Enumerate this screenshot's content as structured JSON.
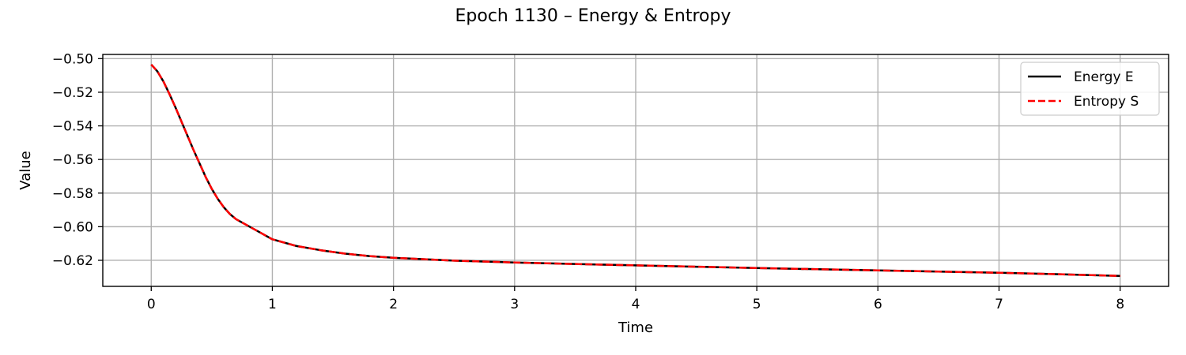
{
  "chart_data": {
    "type": "line",
    "title": "Epoch 1130 – Energy & Entropy",
    "xlabel": "Time",
    "ylabel": "Value",
    "xlim": [
      -0.4,
      8.4
    ],
    "ylim": [
      -0.6355,
      -0.4975
    ],
    "xticks": [
      0,
      1,
      2,
      3,
      4,
      5,
      6,
      7,
      8
    ],
    "yticks": [
      -0.5,
      -0.52,
      -0.54,
      -0.56,
      -0.58,
      -0.6,
      -0.62
    ],
    "ytick_labels": [
      "−0.50",
      "−0.52",
      "−0.54",
      "−0.56",
      "−0.58",
      "−0.60",
      "−0.62"
    ],
    "xtick_labels": [
      "0",
      "1",
      "2",
      "3",
      "4",
      "5",
      "6",
      "7",
      "8"
    ],
    "grid": true,
    "legend_position": "top-right",
    "series": [
      {
        "name": "Energy E",
        "color": "#000000",
        "style": "solid",
        "x": [
          0,
          0.05,
          0.1,
          0.15,
          0.2,
          0.25,
          0.3,
          0.35,
          0.4,
          0.45,
          0.5,
          0.55,
          0.6,
          0.65,
          0.7,
          0.8,
          0.9,
          1.0,
          1.2,
          1.4,
          1.6,
          1.8,
          2.0,
          2.5,
          3.0,
          3.5,
          4.0,
          4.5,
          5.0,
          5.5,
          6.0,
          6.5,
          7.0,
          7.5,
          8.0
        ],
        "y": [
          -0.5035,
          -0.5075,
          -0.5135,
          -0.521,
          -0.529,
          -0.5375,
          -0.546,
          -0.5545,
          -0.5625,
          -0.5705,
          -0.5775,
          -0.5835,
          -0.5885,
          -0.5925,
          -0.5955,
          -0.5995,
          -0.6035,
          -0.6075,
          -0.6115,
          -0.614,
          -0.616,
          -0.6175,
          -0.6185,
          -0.6202,
          -0.6213,
          -0.6222,
          -0.623,
          -0.6238,
          -0.6246,
          -0.6253,
          -0.626,
          -0.6267,
          -0.6274,
          -0.6283,
          -0.6293
        ]
      },
      {
        "name": "Entropy S",
        "color": "#ff0000",
        "style": "dashed",
        "x": [
          0,
          0.05,
          0.1,
          0.15,
          0.2,
          0.25,
          0.3,
          0.35,
          0.4,
          0.45,
          0.5,
          0.55,
          0.6,
          0.65,
          0.7,
          0.8,
          0.9,
          1.0,
          1.2,
          1.4,
          1.6,
          1.8,
          2.0,
          2.5,
          3.0,
          3.5,
          4.0,
          4.5,
          5.0,
          5.5,
          6.0,
          6.5,
          7.0,
          7.5,
          8.0
        ],
        "y": [
          -0.5035,
          -0.5075,
          -0.5135,
          -0.521,
          -0.529,
          -0.5375,
          -0.546,
          -0.5545,
          -0.5625,
          -0.5705,
          -0.5775,
          -0.5835,
          -0.5885,
          -0.5925,
          -0.5955,
          -0.5995,
          -0.6035,
          -0.6075,
          -0.6115,
          -0.614,
          -0.616,
          -0.6175,
          -0.6185,
          -0.6202,
          -0.6213,
          -0.6222,
          -0.623,
          -0.6238,
          -0.6246,
          -0.6253,
          -0.626,
          -0.6267,
          -0.6274,
          -0.6283,
          -0.6293
        ]
      }
    ]
  }
}
